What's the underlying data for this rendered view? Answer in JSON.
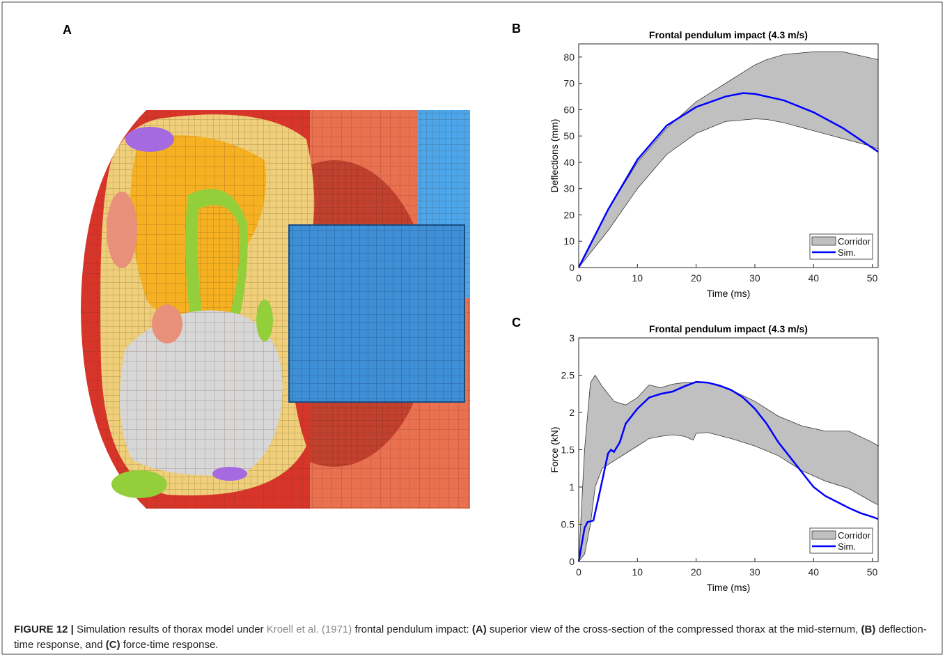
{
  "panel_a": {
    "label": "A"
  },
  "chart_data": [
    {
      "type": "line",
      "panel": "B",
      "title": "Frontal pendulum impact (4.3 m/s)",
      "xlabel": "Time (ms)",
      "ylabel": "Deflections (mm)",
      "xlim": [
        0,
        51
      ],
      "ylim": [
        0,
        85
      ],
      "xticks": [
        0,
        10,
        20,
        30,
        40,
        50
      ],
      "yticks": [
        0,
        10,
        20,
        30,
        40,
        50,
        60,
        70,
        80
      ],
      "grid": false,
      "legend": "lower right",
      "series": [
        {
          "name": "Corridor",
          "color": "#c0c0c0",
          "x": [
            0,
            5,
            10,
            15,
            20,
            25,
            30,
            32,
            35,
            40,
            45,
            50,
            51
          ],
          "upper": [
            0,
            22,
            40,
            53,
            63,
            70,
            77,
            79,
            81,
            82,
            82,
            79.5,
            79
          ],
          "lower": [
            0,
            14,
            30,
            43,
            51,
            55.5,
            56.5,
            56.3,
            55,
            52,
            49,
            46,
            45
          ]
        },
        {
          "name": "Sim.",
          "color": "#0000ff",
          "x": [
            0,
            5,
            10,
            15,
            20,
            25,
            28,
            30,
            35,
            40,
            45,
            50,
            51
          ],
          "values": [
            0,
            22,
            41,
            54,
            61,
            65,
            66.3,
            66,
            63.5,
            59,
            53,
            45.5,
            44
          ]
        }
      ]
    },
    {
      "type": "line",
      "panel": "C",
      "title": "Frontal pendulum impact (4.3 m/s)",
      "xlabel": "Time (ms)",
      "ylabel": "Force (kN)",
      "xlim": [
        0,
        51
      ],
      "ylim": [
        0,
        3
      ],
      "xticks": [
        0,
        10,
        20,
        30,
        40,
        50
      ],
      "yticks": [
        0,
        0.5,
        1,
        1.5,
        2,
        2.5,
        3
      ],
      "grid": false,
      "legend": "lower right",
      "series": [
        {
          "name": "Corridor",
          "color": "#c0c0c0",
          "x": [
            0,
            1,
            2,
            2.8,
            4,
            6,
            8,
            10,
            12,
            14,
            16,
            18,
            19.5,
            20,
            22,
            26,
            30,
            34,
            38,
            42,
            46,
            50,
            51
          ],
          "upper": [
            0,
            1.5,
            2.4,
            2.5,
            2.35,
            2.15,
            2.1,
            2.2,
            2.37,
            2.33,
            2.38,
            2.4,
            2.4,
            2.4,
            2.4,
            2.3,
            2.15,
            1.95,
            1.82,
            1.75,
            1.75,
            1.6,
            1.55
          ],
          "lower": [
            0,
            0.1,
            0.5,
            1.0,
            1.25,
            1.35,
            1.45,
            1.55,
            1.65,
            1.68,
            1.7,
            1.68,
            1.63,
            1.72,
            1.73,
            1.65,
            1.55,
            1.42,
            1.22,
            1.08,
            0.98,
            0.8,
            0.76
          ]
        },
        {
          "name": "Sim.",
          "color": "#0000ff",
          "x": [
            0,
            1,
            1.5,
            2.5,
            3.5,
            5,
            5.5,
            6,
            7,
            8,
            10,
            12,
            14,
            16,
            18,
            20,
            22,
            24,
            26,
            28,
            30,
            32,
            34,
            36,
            38,
            40,
            42,
            44,
            46,
            48,
            50,
            51
          ],
          "values": [
            0,
            0.45,
            0.53,
            0.55,
            0.9,
            1.45,
            1.5,
            1.47,
            1.6,
            1.85,
            2.05,
            2.2,
            2.25,
            2.28,
            2.35,
            2.41,
            2.4,
            2.36,
            2.3,
            2.2,
            2.05,
            1.85,
            1.6,
            1.4,
            1.2,
            1.0,
            0.88,
            0.8,
            0.72,
            0.65,
            0.6,
            0.57
          ]
        }
      ]
    }
  ],
  "caption": [
    "FIGURE 12 |",
    "Simulation results of thorax model under",
    "Kroell et al. (1971)",
    "frontal pendulum impact:",
    "(A)",
    "superior view of the cross-section of the compressed thorax at the mid-sternum,",
    "(B)",
    "deflection-time response, and",
    "(C)",
    "force-time response."
  ]
}
